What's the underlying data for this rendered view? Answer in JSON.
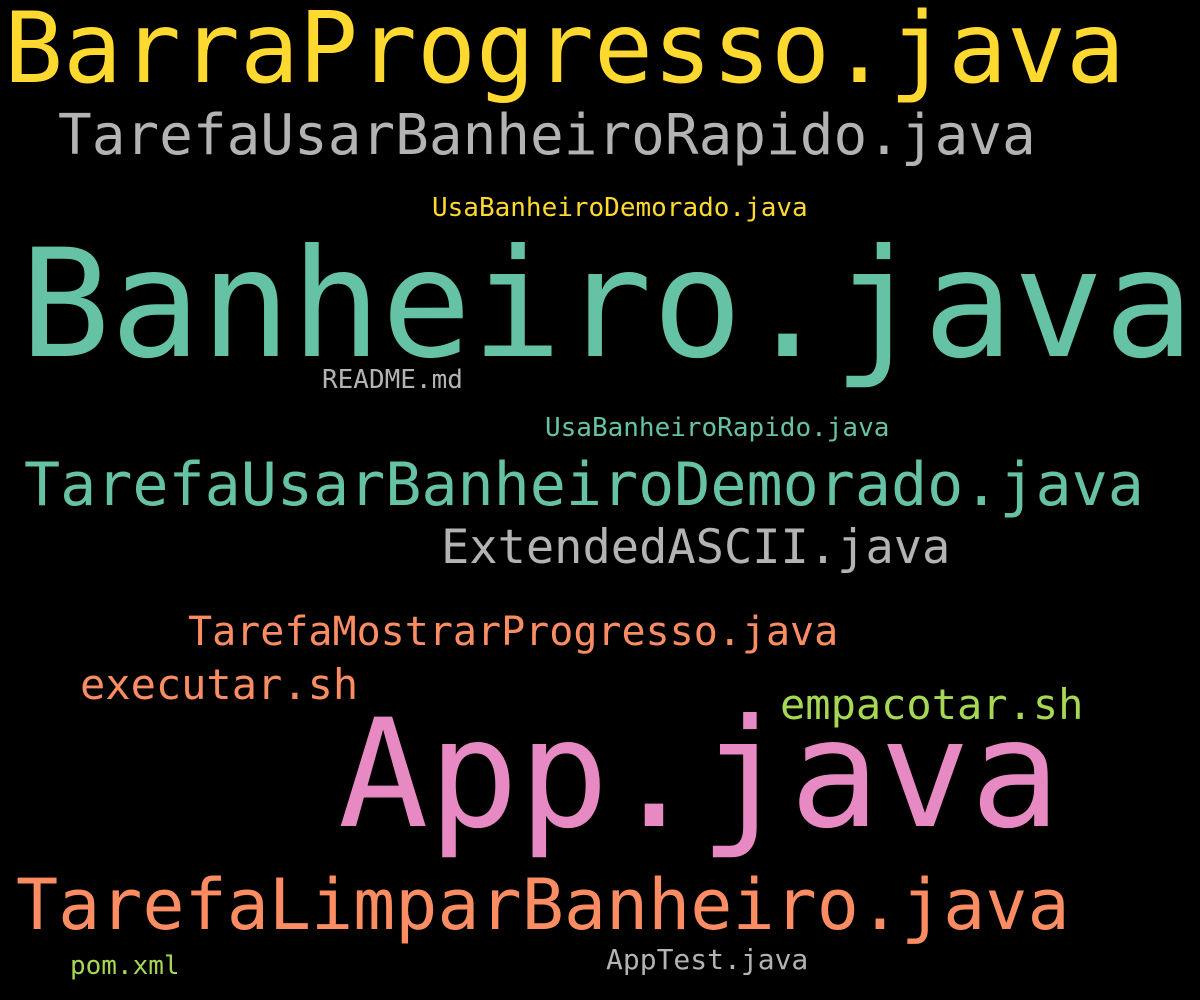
{
  "word_cloud": {
    "background": "#000000",
    "words": [
      {
        "text": "BarraProgresso.java",
        "color": "#ffd92f"
      },
      {
        "text": "TarefaUsarBanheiroRapido.java",
        "color": "#b3b3b3"
      },
      {
        "text": "UsaBanheiroDemorado.java",
        "color": "#ffd92f"
      },
      {
        "text": "Banheiro.java",
        "color": "#66c2a5"
      },
      {
        "text": "README.md",
        "color": "#b3b3b3"
      },
      {
        "text": "UsaBanheiroRapido.java",
        "color": "#66c2a5"
      },
      {
        "text": "TarefaUsarBanheiroDemorado.java",
        "color": "#66c2a5"
      },
      {
        "text": "ExtendedASCII.java",
        "color": "#b3b3b3"
      },
      {
        "text": "TarefaMostrarProgresso.java",
        "color": "#fc8d62"
      },
      {
        "text": "executar.sh",
        "color": "#fc8d62"
      },
      {
        "text": "empacotar.sh",
        "color": "#a6d854"
      },
      {
        "text": "App.java",
        "color": "#e78ac3"
      },
      {
        "text": "TarefaLimparBanheiro.java",
        "color": "#fc8d62"
      },
      {
        "text": "AppTest.java",
        "color": "#b3b3b3"
      },
      {
        "text": "pom.xml",
        "color": "#a6d854"
      }
    ]
  }
}
